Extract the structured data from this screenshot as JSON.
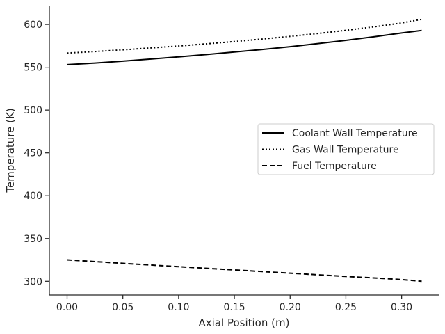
{
  "chart_data": {
    "type": "line",
    "title": "",
    "xlabel": "Axial Position (m)",
    "ylabel": "Temperature (K)",
    "xlim": [
      -0.0159,
      0.3339
    ],
    "ylim": [
      284,
      622
    ],
    "xticks": [
      0.0,
      0.05,
      0.1,
      0.15,
      0.2,
      0.25,
      0.3
    ],
    "xtick_labels": [
      "0.00",
      "0.05",
      "0.10",
      "0.15",
      "0.20",
      "0.25",
      "0.30"
    ],
    "yticks": [
      300,
      350,
      400,
      450,
      500,
      550,
      600
    ],
    "ytick_labels": [
      "300",
      "350",
      "400",
      "450",
      "500",
      "550",
      "600"
    ],
    "grid": false,
    "legend_position": "center-right",
    "x": [
      0.0,
      0.025,
      0.05,
      0.075,
      0.1,
      0.125,
      0.15,
      0.175,
      0.2,
      0.225,
      0.25,
      0.275,
      0.3,
      0.318
    ],
    "series": [
      {
        "name": "Coolant Wall Temperature",
        "style": "solid",
        "color": "#000000",
        "values": [
          553.0,
          554.9,
          557.1,
          559.5,
          562.1,
          564.8,
          567.7,
          570.7,
          574.0,
          577.6,
          581.4,
          585.5,
          590.0,
          593.0
        ]
      },
      {
        "name": "Gas Wall Temperature",
        "style": "dotted",
        "color": "#000000",
        "values": [
          566.5,
          568.3,
          570.3,
          572.5,
          574.8,
          577.3,
          580.0,
          582.9,
          586.0,
          589.4,
          593.1,
          597.1,
          601.7,
          606.0
        ]
      },
      {
        "name": "Fuel Temperature",
        "style": "dashed",
        "color": "#000000",
        "values": [
          325.0,
          323.0,
          321.0,
          319.0,
          317.1,
          315.2,
          313.3,
          311.4,
          309.5,
          307.6,
          305.7,
          303.9,
          302.0,
          300.0
        ]
      }
    ]
  }
}
